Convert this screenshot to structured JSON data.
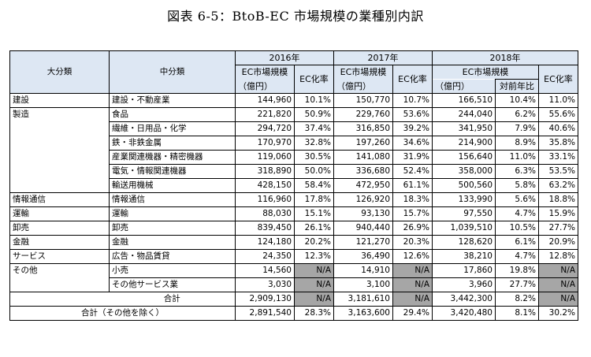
{
  "title": "図表 6-5：BtoB-EC 市場規模の業種別内訳",
  "header": {
    "col_major": "大分類",
    "col_mid": "中分類",
    "years": [
      "2016年",
      "2017年",
      "2018年"
    ],
    "ec_market": "EC市場規模",
    "unit": "（億円）",
    "ec_rate": "EC化率",
    "yoy": "対前年比"
  },
  "rows": [
    {
      "major": "建設",
      "mid": "建設・不動産業",
      "v16": "144,960",
      "r16": "10.1%",
      "v17": "150,770",
      "r17": "10.7%",
      "v18": "166,510",
      "yoy": "10.4%",
      "r18": "11.0%"
    },
    {
      "major": "製造",
      "mid": "食品",
      "v16": "221,820",
      "r16": "50.9%",
      "v17": "229,760",
      "r17": "53.6%",
      "v18": "244,040",
      "yoy": "6.2%",
      "r18": "55.6%"
    },
    {
      "major": "",
      "mid": "繊維・日用品・化学",
      "v16": "294,720",
      "r16": "37.4%",
      "v17": "316,850",
      "r17": "39.2%",
      "v18": "341,950",
      "yoy": "7.9%",
      "r18": "40.6%"
    },
    {
      "major": "",
      "mid": "鉄・非鉄金属",
      "v16": "170,970",
      "r16": "32.8%",
      "v17": "197,260",
      "r17": "34.6%",
      "v18": "214,900",
      "yoy": "8.9%",
      "r18": "35.8%"
    },
    {
      "major": "",
      "mid": "産業関連機器・精密機器",
      "v16": "119,060",
      "r16": "30.5%",
      "v17": "141,080",
      "r17": "31.9%",
      "v18": "156,640",
      "yoy": "11.0%",
      "r18": "33.1%"
    },
    {
      "major": "",
      "mid": "電気・情報関連機器",
      "v16": "318,890",
      "r16": "50.0%",
      "v17": "336,680",
      "r17": "52.4%",
      "v18": "358,000",
      "yoy": "6.3%",
      "r18": "53.5%"
    },
    {
      "major": "",
      "mid": "輸送用機械",
      "v16": "428,150",
      "r16": "58.4%",
      "v17": "472,950",
      "r17": "61.1%",
      "v18": "500,560",
      "yoy": "5.8%",
      "r18": "63.2%"
    },
    {
      "major": "情報通信",
      "mid": "情報通信",
      "v16": "116,960",
      "r16": "17.8%",
      "v17": "126,920",
      "r17": "18.3%",
      "v18": "133,990",
      "yoy": "5.6%",
      "r18": "18.8%"
    },
    {
      "major": "運輸",
      "mid": "運輸",
      "v16": "88,030",
      "r16": "15.1%",
      "v17": "93,130",
      "r17": "15.7%",
      "v18": "97,550",
      "yoy": "4.7%",
      "r18": "15.9%"
    },
    {
      "major": "卸売",
      "mid": "卸売",
      "v16": "839,450",
      "r16": "26.1%",
      "v17": "940,440",
      "r17": "26.9%",
      "v18": "1,039,510",
      "yoy": "10.5%",
      "r18": "27.7%"
    },
    {
      "major": "金融",
      "mid": "金融",
      "v16": "124,180",
      "r16": "20.2%",
      "v17": "121,270",
      "r17": "20.3%",
      "v18": "128,620",
      "yoy": "6.1%",
      "r18": "20.9%"
    },
    {
      "major": "サービス",
      "mid": "広告・物品賃貸",
      "v16": "24,350",
      "r16": "12.3%",
      "v17": "36,490",
      "r17": "12.6%",
      "v18": "38,210",
      "yoy": "4.7%",
      "r18": "12.8%"
    },
    {
      "major": "その他",
      "mid": "小売",
      "v16": "14,560",
      "r16": "N/A",
      "v17": "14,910",
      "r17": "N/A",
      "v18": "17,860",
      "yoy": "19.8%",
      "r18": "N/A"
    },
    {
      "major": "",
      "mid": "その他サービス業",
      "v16": "3,030",
      "r16": "N/A",
      "v17": "3,100",
      "r17": "N/A",
      "v18": "3,960",
      "yoy": "27.7%",
      "r18": "N/A"
    }
  ],
  "total": {
    "label": "合計",
    "v16": "2,909,130",
    "r16": "N/A",
    "v17": "3,181,610",
    "r17": "N/A",
    "v18": "3,442,300",
    "yoy": "8.2%",
    "r18": "N/A"
  },
  "total_ex": {
    "label": "合計（その他を除く）",
    "v16": "2,891,540",
    "r16": "28.3%",
    "v17": "3,163,600",
    "r17": "29.4%",
    "v18": "3,420,480",
    "yoy": "8.1%",
    "r18": "30.2%"
  }
}
